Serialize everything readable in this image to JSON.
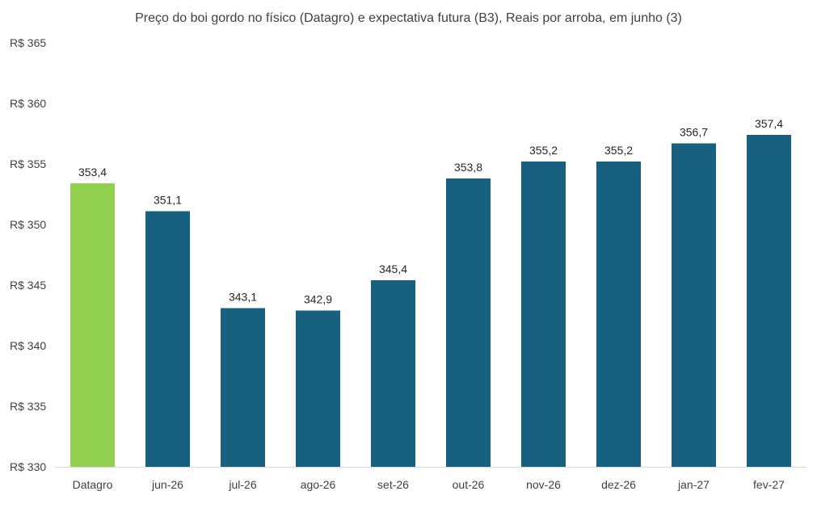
{
  "chart_data": {
    "type": "bar",
    "title": "Preço do boi gordo no físico (Datagro)  e expectativa futura (B3), Reais por arroba, em junho (3)",
    "xlabel": "",
    "ylabel": "",
    "categories": [
      "Datagro",
      "jun-26",
      "jul-26",
      "ago-26",
      "set-26",
      "out-26",
      "nov-26",
      "dez-26",
      "jan-27",
      "fev-27"
    ],
    "values": [
      353.4,
      351.1,
      343.1,
      342.9,
      345.4,
      353.8,
      355.2,
      355.2,
      356.7,
      357.4
    ],
    "value_labels": [
      "353,4",
      "351,1",
      "343,1",
      "342,9",
      "345,4",
      "353,8",
      "355,2",
      "355,2",
      "356,7",
      "357,4"
    ],
    "ylim": [
      330,
      365
    ],
    "yticks": [
      330,
      335,
      340,
      345,
      350,
      355,
      360,
      365
    ],
    "ytick_labels": [
      "R$ 330",
      "R$ 335",
      "R$ 340",
      "R$ 345",
      "R$ 350",
      "R$ 355",
      "R$ 360",
      "R$ 365"
    ],
    "grid": false,
    "legend": "none",
    "colors": {
      "highlight": "#92d050",
      "default": "#17607f",
      "axis": "#d9d9d9",
      "text": "#404040"
    },
    "highlight_index": 0
  }
}
